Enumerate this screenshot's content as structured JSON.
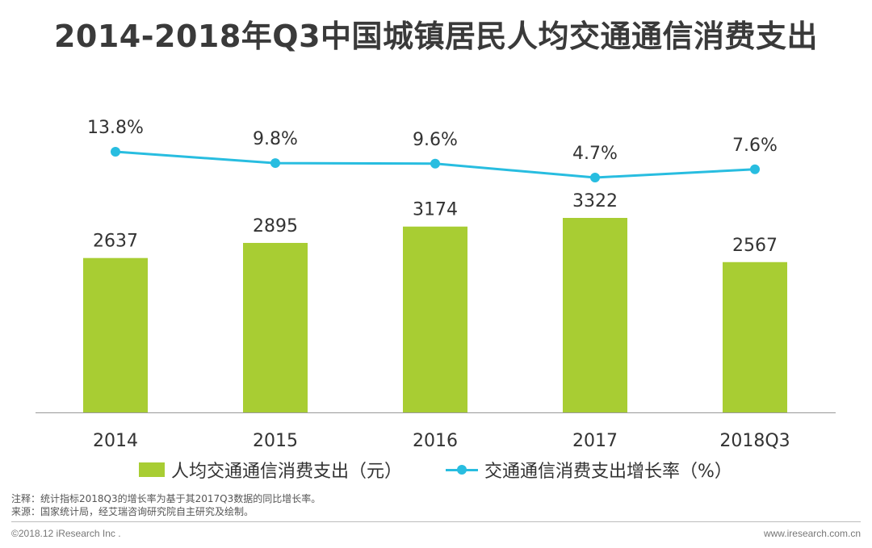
{
  "title": "2014-2018年Q3中国城镇居民人均交通通信消费支出",
  "colors": {
    "bar": "#a8cd33",
    "line": "#28bde0",
    "axis": "#999999"
  },
  "chart_data": {
    "type": "bar",
    "categories": [
      "2014",
      "2015",
      "2016",
      "2017",
      "2018Q3"
    ],
    "series": [
      {
        "name": "人均交通通信消费支出（元）",
        "type": "bar",
        "values": [
          2637,
          2895,
          3174,
          3322,
          2567
        ]
      },
      {
        "name": "交通通信消费支出增长率（%）",
        "type": "line",
        "values": [
          13.8,
          9.8,
          9.6,
          4.7,
          7.6
        ]
      }
    ],
    "bar_labels": [
      "2637",
      "2895",
      "3174",
      "3322",
      "2567"
    ],
    "line_labels": [
      "13.8%",
      "9.8%",
      "9.6%",
      "4.7%",
      "7.6%"
    ],
    "legend_position": "bottom"
  },
  "notes": [
    "注释：统计指标2018Q3的增长率为基于其2017Q3数据的同比增长率。",
    "来源：国家统计局，经艾瑞咨询研究院自主研究及绘制。"
  ],
  "footer": {
    "left": "©2018.12 iResearch Inc .",
    "right": "www.iresearch.com.cn"
  }
}
